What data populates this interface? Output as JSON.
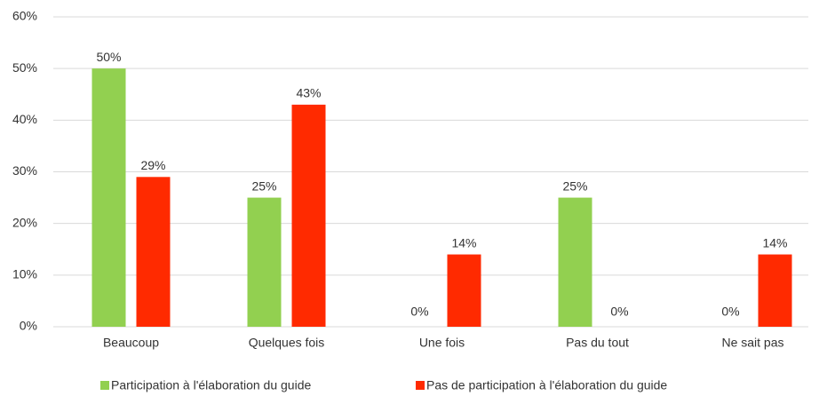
{
  "chart_data": {
    "type": "bar",
    "categories": [
      "Beaucoup",
      "Quelques fois",
      "Une fois",
      "Pas du tout",
      "Ne sait pas"
    ],
    "series": [
      {
        "name": "Participation à l'élaboration du guide",
        "color": "#92d050",
        "values": [
          50,
          25,
          0,
          25,
          0
        ],
        "value_labels": [
          "50%",
          "25%",
          "0%",
          "25%",
          "0%"
        ]
      },
      {
        "name": "Pas de participation à l'élaboration du guide",
        "color": "#ff2a00",
        "values": [
          29,
          43,
          14,
          0,
          14
        ],
        "value_labels": [
          "29%",
          "43%",
          "14%",
          "0%",
          "14%"
        ]
      }
    ],
    "ylim": [
      0,
      60
    ],
    "yticks": [
      {
        "value": 0,
        "label": "0%"
      },
      {
        "value": 10,
        "label": "10%"
      },
      {
        "value": 20,
        "label": "20%"
      },
      {
        "value": 30,
        "label": "30%"
      },
      {
        "value": 40,
        "label": "40%"
      },
      {
        "value": 50,
        "label": "50%"
      },
      {
        "value": 60,
        "label": "60%"
      }
    ],
    "grid": true,
    "legend": "bottom"
  }
}
